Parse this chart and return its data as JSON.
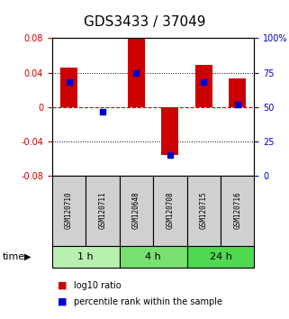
{
  "title": "GDS3433 / 37049",
  "samples": [
    "GSM120710",
    "GSM120711",
    "GSM120648",
    "GSM120708",
    "GSM120715",
    "GSM120716"
  ],
  "log10_ratio": [
    0.046,
    0.0,
    0.079,
    -0.056,
    0.049,
    0.033
  ],
  "percentile_rank": [
    0.68,
    0.465,
    0.75,
    0.15,
    0.68,
    0.52
  ],
  "groups": [
    {
      "label": "1 h",
      "samples": [
        0,
        1
      ],
      "color": "#b8f0b0"
    },
    {
      "label": "4 h",
      "samples": [
        2,
        3
      ],
      "color": "#78e070"
    },
    {
      "label": "24 h",
      "samples": [
        4,
        5
      ],
      "color": "#50d850"
    }
  ],
  "ylim": [
    -0.08,
    0.08
  ],
  "right_ylim": [
    0,
    100
  ],
  "bar_color": "#cc0000",
  "dot_color": "#0000cc",
  "title_fontsize": 11,
  "background_color": "#ffffff",
  "plot_bg": "#ffffff",
  "zero_line_color": "#cc0000",
  "left_tick_color": "#cc0000",
  "right_tick_color": "#0000cc",
  "left_ticks": [
    -0.08,
    -0.04,
    0,
    0.04,
    0.08
  ],
  "right_ticks": [
    0,
    25,
    50,
    75,
    100
  ]
}
